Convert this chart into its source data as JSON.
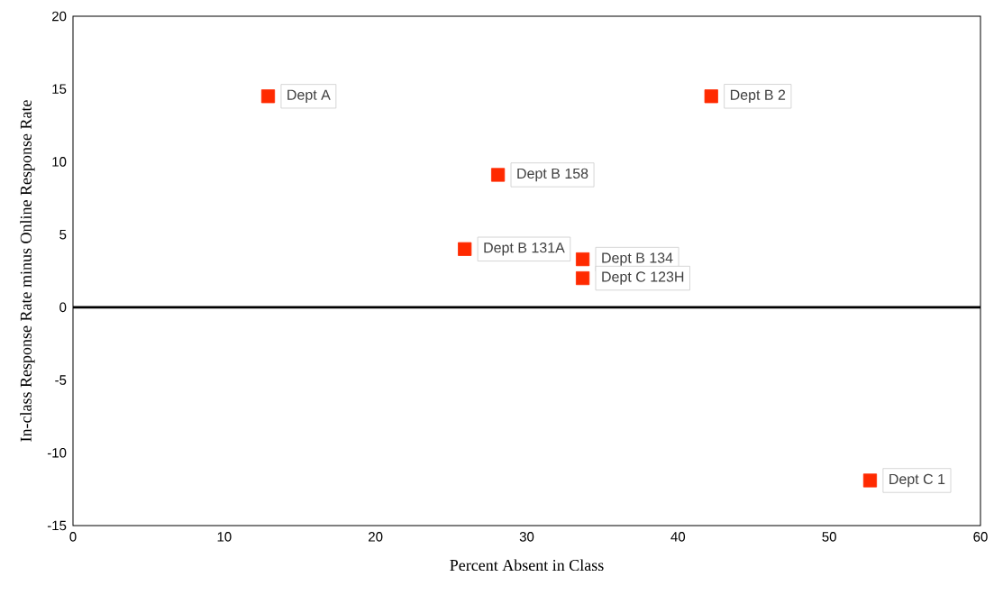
{
  "chart_data": {
    "type": "scatter",
    "xlabel": "Percent Absent in Class",
    "ylabel": "In-class Response Rate minus Online Response Rate",
    "series": [
      {
        "color": "#ff2a00",
        "x": [
          12.9,
          42.2,
          28.1,
          25.9,
          33.7,
          33.7,
          52.7
        ],
        "values": [
          14.5,
          14.5,
          9.1,
          4.0,
          3.3,
          2.0,
          -11.9
        ]
      }
    ],
    "marker": "square",
    "grid": false,
    "xlim": [
      0,
      60
    ],
    "xticks": [
      0,
      10,
      20,
      30,
      40,
      50,
      60
    ],
    "ylim": [
      -15,
      20
    ],
    "yticks": [
      -15,
      -10,
      -5,
      0,
      5,
      10,
      15,
      20
    ],
    "ref_lines": [
      {
        "axis": "y",
        "value": 0,
        "color": "#000000"
      }
    ],
    "annotations": [
      {
        "text": "Dept A",
        "x": 12.9,
        "y": 14.5
      },
      {
        "text": "Dept B 2",
        "x": 42.2,
        "y": 14.5
      },
      {
        "text": "Dept B 158",
        "x": 28.1,
        "y": 9.1
      },
      {
        "text": "Dept B 131A",
        "x": 25.9,
        "y": 4.0
      },
      {
        "text": "Dept B 134",
        "x": 33.7,
        "y": 3.3
      },
      {
        "text": "Dept C 123H",
        "x": 33.7,
        "y": 2.0
      },
      {
        "text": "Dept C 1",
        "x": 52.7,
        "y": -11.9
      }
    ]
  }
}
